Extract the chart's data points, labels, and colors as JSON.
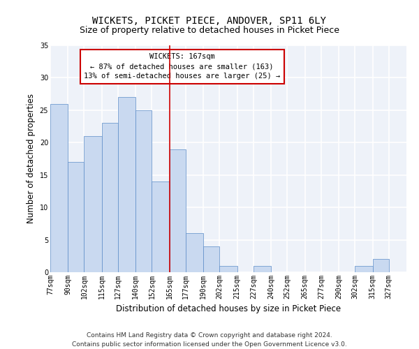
{
  "title": "WICKETS, PICKET PIECE, ANDOVER, SP11 6LY",
  "subtitle": "Size of property relative to detached houses in Picket Piece",
  "xlabel": "Distribution of detached houses by size in Picket Piece",
  "ylabel": "Number of detached properties",
  "footer1": "Contains HM Land Registry data © Crown copyright and database right 2024.",
  "footer2": "Contains public sector information licensed under the Open Government Licence v3.0.",
  "annotation_title": "WICKETS: 167sqm",
  "annotation_line1": "← 87% of detached houses are smaller (163)",
  "annotation_line2": "13% of semi-detached houses are larger (25) →",
  "bar_color": "#c9d9f0",
  "bar_edge_color": "#5b8cc8",
  "highlight_line_color": "#cc0000",
  "categories": [
    "77sqm",
    "90sqm",
    "102sqm",
    "115sqm",
    "127sqm",
    "140sqm",
    "152sqm",
    "165sqm",
    "177sqm",
    "190sqm",
    "202sqm",
    "215sqm",
    "227sqm",
    "240sqm",
    "252sqm",
    "265sqm",
    "277sqm",
    "290sqm",
    "302sqm",
    "315sqm",
    "327sqm"
  ],
  "bin_edges": [
    77,
    90,
    102,
    115,
    127,
    140,
    152,
    165,
    177,
    190,
    202,
    215,
    227,
    240,
    252,
    265,
    277,
    290,
    302,
    315,
    327,
    340
  ],
  "values": [
    26,
    17,
    21,
    23,
    27,
    25,
    14,
    19,
    6,
    4,
    1,
    0,
    1,
    0,
    0,
    0,
    0,
    0,
    1,
    2,
    0
  ],
  "ylim": [
    0,
    35
  ],
  "yticks": [
    0,
    5,
    10,
    15,
    20,
    25,
    30,
    35
  ],
  "background_color": "#eef2f9",
  "grid_color": "#ffffff",
  "title_fontsize": 10,
  "subtitle_fontsize": 9,
  "axis_label_fontsize": 8.5,
  "tick_fontsize": 7,
  "footer_fontsize": 6.5,
  "annotation_fontsize": 7.5
}
